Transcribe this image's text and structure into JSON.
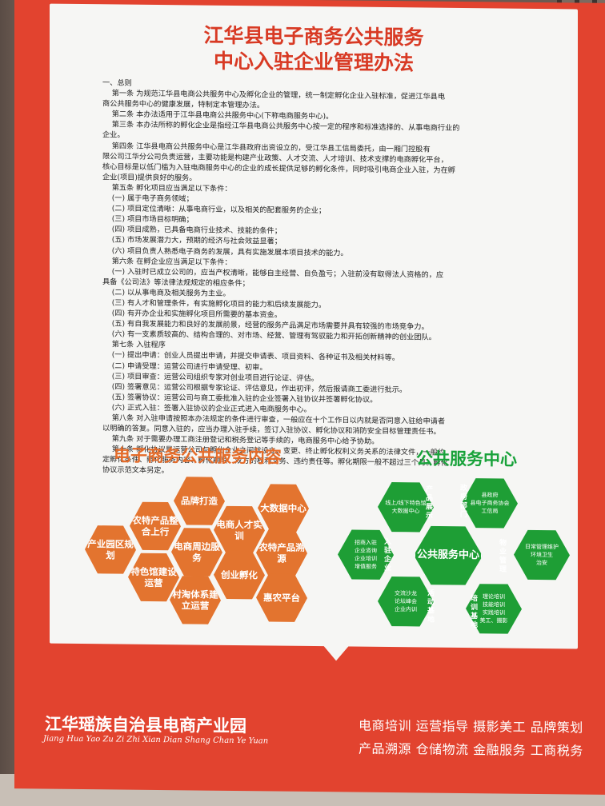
{
  "poster": {
    "title_line1": "江华县电子商务公共服务",
    "title_line2": "中心入驻企业管理办法",
    "body": "一、总则\n    第一条 为规范江华县电商公共服务中心及孵化企业的管理，统一制定孵化企业入驻标准，促进江华县电\n商公共服务中心的健康发展，特制定本管理办法。\n    第二条 本办法适用于江华县电商公共服务中心(下称电商服务中心)。\n    第三条 本办法所称的孵化企业是指经江华县电商公共服务中心按一定的程序和标准选择的、从事电商行业的\n企业。\n    第四条 江华县电商公共服务中心是江华县政府出资设立的，受江华县工信局委托，由一厢门控股有\n限公司江华分公司负责运营，主要功能是构建产业政策、人才交流、人才培训、技术支撑的电商孵化平台，\n核心目标是以低门槛为入驻电商服务中心的企业的成长提供足够的孵化条件，同时吸引电商企业入驻，为在孵\n企业(项目)提供良好的服务。\n    第五条 孵化项目应当满足以下条件：\n    (一) 属于电子商务领域；\n    (二) 项目定位清晰：从事电商行业，以及相关的配套服务的企业；\n    (三) 项目市场目标明确；\n    (四) 项目成熟，已具备电商行业技术、技能的条件；\n    (五) 市场发展潜力大，预期的经济与社会效益显著；\n    (六) 项目负责人熟悉电子商务的发展，具有实施发展本项目技术的能力。\n    第六条 在孵企业应当满足以下条件：\n    (一) 入驻时已成立公司的，应当产权清晰，能够自主经营、自负盈亏；入驻前没有取得法人资格的，应\n具备《公司法》等法律法规规定的相应条件；\n    (二) 以从事电商及相关服务为主业。\n    (三) 有人才和管理条件，有实施孵化项目的能力和后续发展能力。\n    (四) 有开办企业和实施孵化项目所需要的基本资金。\n    (五) 有自我发展能力和良好的发展前景，经营的服务产品满足市场需要并具有较强的市场竞争力。\n    (六) 有一支素质较高的、结构合理的、对市场、经营、管理有驾驭能力和开拓创新精神的创业团队。\n    第七条 入驻程序\n    (一) 提出申请：创业人员提出申请，并提交申请表、项目资料、各种证书及相关材料等。\n    (二) 申请受理：运营公司进行申请受理、初审。\n    (三) 项目审查：运营公司组织专家对创业项目进行论证、评估。\n    (四) 签署意见：运营公司根据专家论证、评估意见，作出初评，然后报请商工委进行批示。\n    (五) 签署协议：运营公司与商工委批准入驻的企业签署入驻协议并签署孵化协议。\n    (六) 正式入驻：签署入驻协议的企业正式进入电商服务中心。\n    第八条 对入驻申请按照本办法规定的条件进行审查，一般应在十个工作日以内就是否同意入驻给申请者\n以明确的答复。同意入驻的，应当办理入驻手续，签订入驻协议、孵化协议和消防安全目标管理责任书。\n    第九条 对于需要办理工商注册登记和税务登记等手续的，电商服务中心给予协助。\n    第十条 孵化协议是运营公司与孵化企业之间就设立、变更、终止孵化权利义务关系的法律文件，一般约\n定孵化条件、孵化服务内容、孵化期限、双方的权利义务、违约责任等。孵化期限一般不超过三个月。孵化\n协议示范文本另定。",
    "section_left_title": "电子商务公共服务内容",
    "section_right_title": "公共服务中心",
    "left_hexes": [
      "品牌打造",
      "大数据中心",
      "农特产品整合上行",
      "电商人才实训",
      "农特产品溯源",
      "产业园区规划",
      "电商周边服务",
      "创业孵化",
      "特色馆建设运营",
      "村淘体系建立运营",
      "惠农平台"
    ],
    "right_center": "公共服务中心",
    "right_hexes": [
      "线上/线下特色馆\n大数据中心",
      "县政府\n县电子商务协会\n工信局",
      "日常管理维护\n环境卫生\n治安",
      "招商入驻\n企业咨询\n企业培训\n增值服务",
      "交流沙龙\n论坛峰会\n企业内训",
      "理论培训\n技能培训\n实践培训\n美工、摄影"
    ],
    "right_labels": [
      "产品展示",
      "政府部门",
      "物业管理",
      "入驻企业",
      "活动基地",
      "培训基地"
    ]
  },
  "footer": {
    "park_name": "江华瑶族自治县电商产业园",
    "park_pinyin": "Jiang Hua Yao Zu Zi Zhi Xian Dian Shang Chan Ye Yuan",
    "services_line1": "电商培训  运营指导  摄影美工  品牌策划",
    "services_line2": "产品溯源  仓储物流  金融服务  工商税务"
  },
  "colors": {
    "banner": "#e2432f",
    "accent_orange": "#e3742f",
    "accent_green": "#1e9e35"
  }
}
